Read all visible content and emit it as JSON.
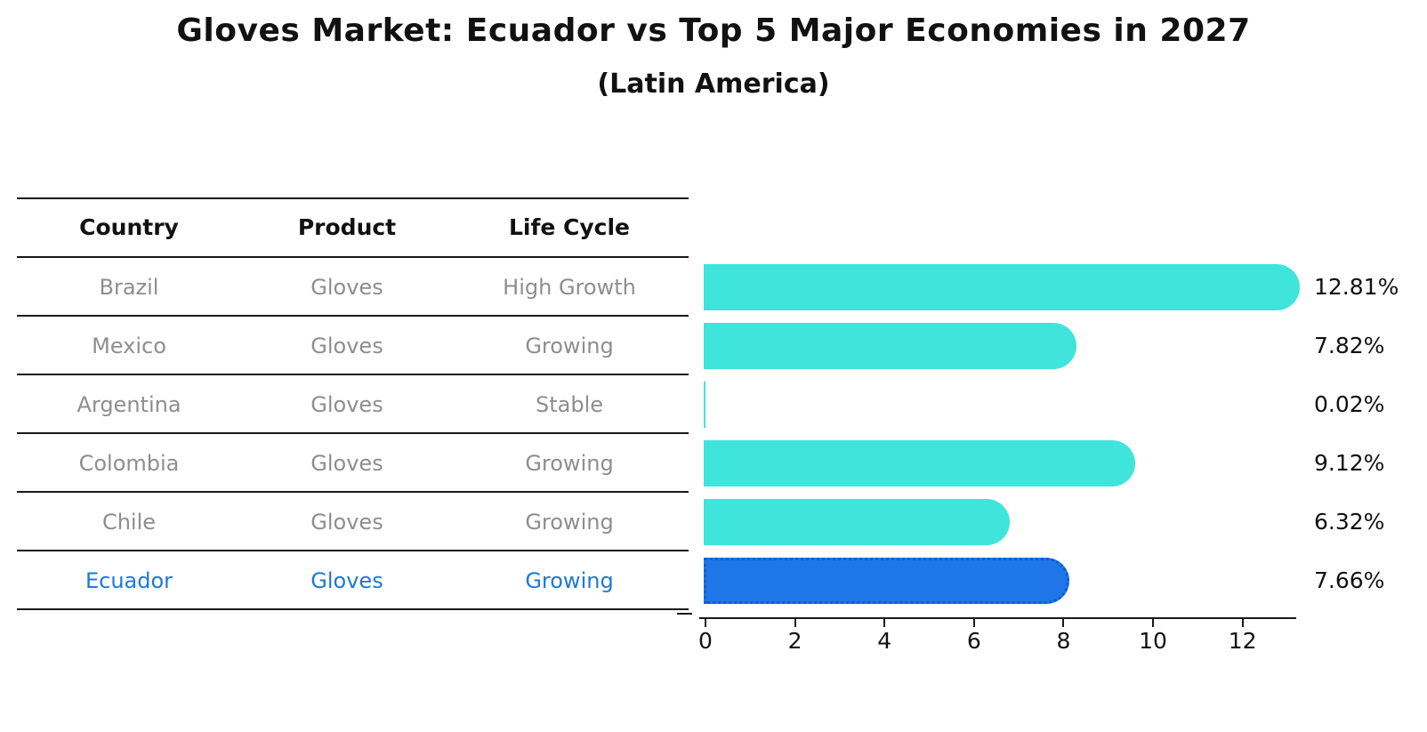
{
  "title": "Gloves Market: Ecuador vs Top 5 Major Economies in 2027",
  "subtitle": "(Latin America)",
  "table": {
    "headers": [
      "Country",
      "Product",
      "Life Cycle"
    ],
    "rows": [
      {
        "country": "Brazil",
        "product": "Gloves",
        "life_cycle": "High Growth"
      },
      {
        "country": "Mexico",
        "product": "Gloves",
        "life_cycle": "Growing"
      },
      {
        "country": "Argentina",
        "product": "Gloves",
        "life_cycle": "Stable"
      },
      {
        "country": "Colombia",
        "product": "Gloves",
        "life_cycle": "Growing"
      },
      {
        "country": "Chile",
        "product": "Gloves",
        "life_cycle": "Growing"
      },
      {
        "country": "Ecuador",
        "product": "Gloves",
        "life_cycle": "Growing"
      }
    ]
  },
  "chart_data": {
    "type": "bar",
    "orientation": "horizontal",
    "title": "Gloves Market: Ecuador vs Top 5 Major Economies in 2027",
    "subtitle": "(Latin America)",
    "categories": [
      "Brazil",
      "Mexico",
      "Argentina",
      "Colombia",
      "Chile",
      "Ecuador"
    ],
    "values": [
      12.81,
      7.82,
      0.02,
      9.12,
      6.32,
      7.66
    ],
    "labels": [
      "12.81%",
      "7.82%",
      "0.02%",
      "9.12%",
      "6.32%",
      "7.66%"
    ],
    "xticks": [
      0,
      2,
      4,
      6,
      8,
      10,
      12
    ],
    "xlim": [
      0,
      13.3
    ],
    "grid": false,
    "legend": "none",
    "highlight_index": 5
  },
  "colors": {
    "bar": "#3FE5DB",
    "highlight_bar": "#1E76E8",
    "highlight_border": "#0D5ED2",
    "highlight_text": "#1E78D6",
    "table_text": "#8E8E8E",
    "line": "#191919",
    "text": "#111111"
  }
}
